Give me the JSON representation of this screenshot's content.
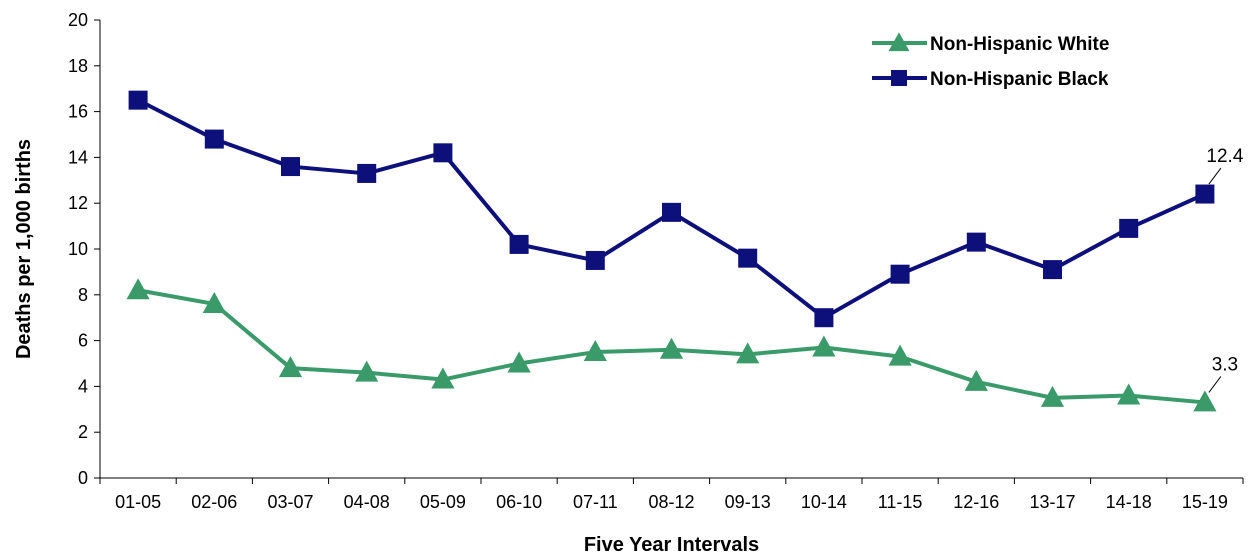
{
  "chart_data": {
    "type": "line",
    "title": "",
    "xlabel": "Five Year Intervals",
    "ylabel": "Deaths per 1,000 births",
    "ylim": [
      0,
      20
    ],
    "yticks": [
      0,
      2,
      4,
      6,
      8,
      10,
      12,
      14,
      16,
      18,
      20
    ],
    "grid": false,
    "legend_position": "top-right",
    "categories": [
      "01-05",
      "02-06",
      "03-07",
      "04-08",
      "05-09",
      "06-10",
      "07-11",
      "08-12",
      "09-13",
      "10-14",
      "11-15",
      "12-16",
      "13-17",
      "14-18",
      "15-19"
    ],
    "series": [
      {
        "name": "Non-Hispanic White",
        "color": "#3a9a6a",
        "marker": "triangle",
        "values": [
          8.2,
          7.6,
          4.8,
          4.6,
          4.3,
          5.0,
          5.5,
          5.6,
          5.4,
          5.7,
          5.3,
          4.2,
          3.5,
          3.6,
          3.3
        ]
      },
      {
        "name": "Non-Hispanic Black",
        "color": "#0d0f7a",
        "marker": "square",
        "values": [
          16.5,
          14.8,
          13.6,
          13.3,
          14.2,
          10.2,
          9.5,
          11.6,
          9.6,
          7.0,
          8.9,
          10.3,
          9.1,
          10.9,
          12.4
        ]
      }
    ],
    "annotations": [
      {
        "series": 1,
        "index": 14,
        "text": "12.4"
      },
      {
        "series": 0,
        "index": 14,
        "text": "3.3"
      }
    ]
  }
}
